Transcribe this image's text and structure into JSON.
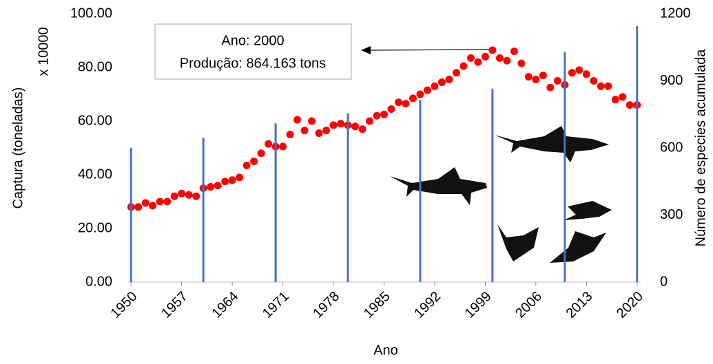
{
  "chart_data": {
    "type": "combo",
    "y_label": "Captura (toneladas)",
    "y_multiplier": "x 10000",
    "y2_label": "Número de especies acumulada",
    "x_label": "Ano",
    "annotation": {
      "line1": "Ano: 2000",
      "line2": "Produção: 864.163 tons"
    },
    "xlim": [
      1949.5,
      2020.5
    ],
    "xticks": [
      1950,
      1957,
      1964,
      1971,
      1978,
      1985,
      1992,
      1999,
      2006,
      2013,
      2020
    ],
    "ylim": [
      0,
      100
    ],
    "yticks": [
      {
        "value": 0,
        "label": "0.00"
      },
      {
        "value": 20,
        "label": "20.00"
      },
      {
        "value": 40,
        "label": "40.00"
      },
      {
        "value": 60,
        "label": "60.00"
      },
      {
        "value": 80,
        "label": "80.00"
      },
      {
        "value": 100,
        "label": "100.00"
      }
    ],
    "y2lim": [
      0,
      1200
    ],
    "y2ticks": [
      0,
      300,
      600,
      900,
      1200
    ],
    "series": [
      {
        "type": "scatter",
        "color": "#ff0000",
        "x": [
          1950,
          1951,
          1952,
          1953,
          1954,
          1955,
          1956,
          1957,
          1958,
          1959,
          1960,
          1961,
          1962,
          1963,
          1964,
          1965,
          1966,
          1967,
          1968,
          1969,
          1970,
          1971,
          1972,
          1973,
          1974,
          1975,
          1976,
          1977,
          1978,
          1979,
          1980,
          1981,
          1982,
          1983,
          1984,
          1985,
          1986,
          1987,
          1988,
          1989,
          1990,
          1991,
          1992,
          1993,
          1994,
          1995,
          1996,
          1997,
          1998,
          1999,
          2000,
          2001,
          2002,
          2003,
          2004,
          2005,
          2006,
          2007,
          2008,
          2009,
          2010,
          2011,
          2012,
          2013,
          2014,
          2015,
          2016,
          2017,
          2018,
          2019,
          2020
        ],
        "values": [
          28,
          28,
          29.5,
          28.5,
          30,
          30,
          32,
          33,
          32.5,
          32,
          35,
          35.5,
          36,
          37.5,
          38,
          39,
          43.5,
          45,
          48,
          51.5,
          50.5,
          50.5,
          55,
          60.5,
          56.5,
          60,
          55.5,
          56.5,
          58.5,
          59,
          58.5,
          58,
          57,
          60,
          62,
          62.5,
          64.5,
          67,
          66.5,
          68.5,
          70,
          71.5,
          73,
          74.5,
          75.5,
          78,
          80.5,
          83.5,
          82,
          84,
          86.4,
          83.5,
          82.5,
          86,
          81.5,
          76.5,
          75.5,
          77,
          72.5,
          75,
          73.5,
          78,
          79,
          77.5,
          75,
          73,
          73,
          68,
          69,
          66,
          66
        ]
      },
      {
        "type": "bar",
        "axis": "y2",
        "color": "#4472c4",
        "x": [
          1950,
          1960,
          1970,
          1980,
          1990,
          2000,
          2010,
          2020
        ],
        "values": [
          600,
          645,
          710,
          755,
          815,
          865,
          1030,
          1145
        ]
      }
    ]
  }
}
